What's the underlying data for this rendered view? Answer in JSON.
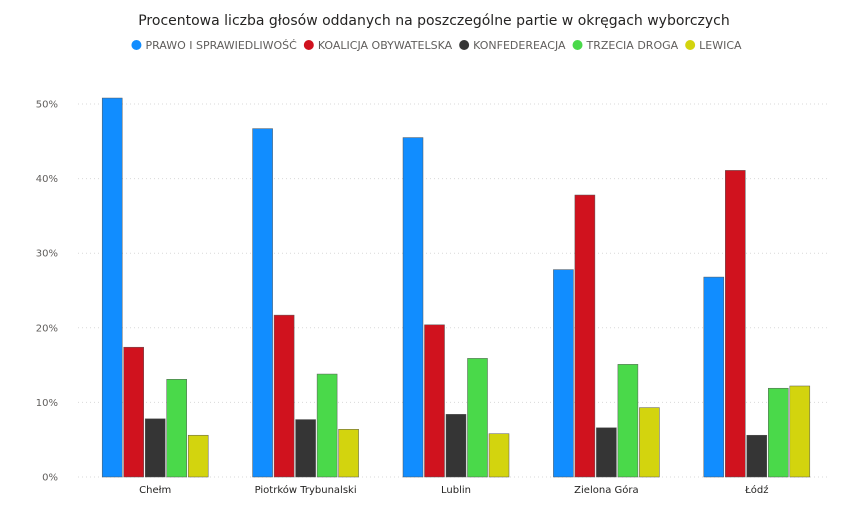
{
  "chart_data": {
    "type": "bar",
    "title": "Procentowa liczba głosów oddanych na poszczególne partie w okręgach wyborczych",
    "categories": [
      "Chełm",
      "Piotrków Trybunalski",
      "Lublin",
      "Zielona Góra",
      "Łódź"
    ],
    "series": [
      {
        "name": "PRAWO I SPRAWIEDLIWOŚĆ",
        "color": "#118dff",
        "values": [
          50.8,
          46.7,
          45.5,
          27.8,
          26.8
        ]
      },
      {
        "name": "KOALICJA OBYWATELSKA",
        "color": "#d0121e",
        "values": [
          17.4,
          21.7,
          20.4,
          37.8,
          41.1
        ]
      },
      {
        "name": "KONFEDEREACJA",
        "color": "#353535",
        "values": [
          7.8,
          7.7,
          8.4,
          6.6,
          5.6
        ]
      },
      {
        "name": "TRZECIA DROGA",
        "color": "#4ad94a",
        "values": [
          13.1,
          13.8,
          15.9,
          15.1,
          11.9
        ]
      },
      {
        "name": "LEWICA",
        "color": "#d3d40e",
        "values": [
          5.6,
          6.4,
          5.8,
          9.3,
          12.2
        ]
      }
    ],
    "ylim": [
      0,
      50
    ],
    "yticks": [
      "0%",
      "10%",
      "20%",
      "30%",
      "40%",
      "50%"
    ],
    "ytick_values": [
      0,
      10,
      20,
      30,
      40,
      50
    ],
    "grid": true,
    "legend_position": "top"
  }
}
